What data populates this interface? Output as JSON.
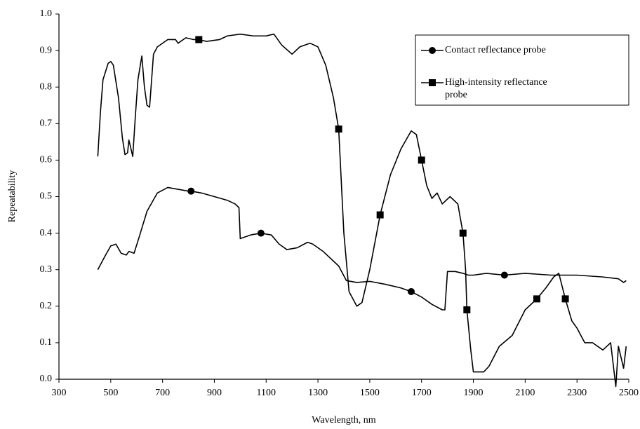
{
  "chart_data": {
    "type": "line",
    "x_label": "Wavelength, nm",
    "y_label": "Repeatability",
    "xlim": [
      300,
      2500
    ],
    "xticks": [
      300,
      500,
      700,
      900,
      1100,
      1300,
      1500,
      1700,
      1900,
      2100,
      2300,
      2500
    ],
    "ylim": [
      0,
      1
    ],
    "yticks": [
      {
        "value": 0,
        "label": "0.0"
      },
      0.1,
      0.2,
      0.3,
      0.4,
      0.5,
      0.6,
      0.7,
      0.8,
      0.9,
      {
        "value": 1,
        "label": "1.0"
      }
    ],
    "grid": false,
    "legend": "upper right",
    "series": [
      {
        "name": "Contact reflectance probe",
        "color": "#000000",
        "marker": "circle",
        "markevery": [
          14,
          22,
          36,
          47
        ],
        "x": [
          450,
          480,
          500,
          520,
          540,
          560,
          570,
          590,
          610,
          640,
          680,
          720,
          760,
          800,
          810,
          850,
          900,
          950,
          980,
          995,
          1000,
          1040,
          1080,
          1120,
          1150,
          1180,
          1220,
          1260,
          1280,
          1320,
          1380,
          1410,
          1450,
          1500,
          1560,
          1620,
          1660,
          1700,
          1740,
          1780,
          1790,
          1800,
          1830,
          1860,
          1880,
          1900,
          1950,
          2020,
          2100,
          2200,
          2300,
          2400,
          2460,
          2480,
          2490
        ],
        "values": [
          0.3,
          0.34,
          0.365,
          0.37,
          0.345,
          0.34,
          0.35,
          0.345,
          0.39,
          0.46,
          0.51,
          0.525,
          0.52,
          0.515,
          0.515,
          0.51,
          0.5,
          0.49,
          0.48,
          0.47,
          0.385,
          0.395,
          0.4,
          0.395,
          0.37,
          0.355,
          0.36,
          0.375,
          0.37,
          0.35,
          0.31,
          0.27,
          0.265,
          0.268,
          0.26,
          0.25,
          0.24,
          0.225,
          0.205,
          0.19,
          0.19,
          0.295,
          0.295,
          0.29,
          0.285,
          0.285,
          0.29,
          0.285,
          0.29,
          0.285,
          0.285,
          0.28,
          0.275,
          0.265,
          0.27
        ]
      },
      {
        "name": "High-intensity reflectance probe",
        "color": "#000000",
        "marker": "square",
        "markevery": [
          25,
          40,
          46,
          51,
          58,
          60,
          68,
          72
        ],
        "x": [
          450,
          460,
          470,
          490,
          500,
          510,
          530,
          545,
          555,
          565,
          570,
          585,
          595,
          605,
          620,
          630,
          640,
          650,
          665,
          680,
          720,
          750,
          760,
          790,
          820,
          840,
          870,
          920,
          950,
          1000,
          1050,
          1100,
          1130,
          1160,
          1200,
          1230,
          1270,
          1300,
          1330,
          1360,
          1380,
          1400,
          1420,
          1450,
          1470,
          1500,
          1540,
          1580,
          1620,
          1660,
          1680,
          1700,
          1720,
          1740,
          1760,
          1780,
          1810,
          1840,
          1860,
          1870,
          1875,
          1890,
          1900,
          1940,
          1960,
          2000,
          2050,
          2100,
          2145,
          2180,
          2210,
          2230,
          2255,
          2280,
          2300,
          2330,
          2360,
          2400,
          2430,
          2450,
          2460,
          2480,
          2490
        ],
        "values": [
          0.61,
          0.73,
          0.82,
          0.865,
          0.87,
          0.86,
          0.77,
          0.66,
          0.615,
          0.62,
          0.655,
          0.61,
          0.72,
          0.82,
          0.885,
          0.8,
          0.75,
          0.745,
          0.89,
          0.91,
          0.93,
          0.93,
          0.92,
          0.935,
          0.93,
          0.93,
          0.925,
          0.93,
          0.94,
          0.945,
          0.94,
          0.94,
          0.945,
          0.915,
          0.89,
          0.91,
          0.92,
          0.91,
          0.86,
          0.77,
          0.685,
          0.4,
          0.24,
          0.2,
          0.21,
          0.3,
          0.45,
          0.56,
          0.63,
          0.68,
          0.67,
          0.6,
          0.53,
          0.495,
          0.51,
          0.48,
          0.5,
          0.48,
          0.4,
          0.3,
          0.19,
          0.08,
          0.02,
          0.02,
          0.035,
          0.09,
          0.12,
          0.19,
          0.22,
          0.25,
          0.28,
          0.29,
          0.22,
          0.16,
          0.14,
          0.1,
          0.1,
          0.08,
          0.1,
          -0.02,
          0.09,
          0.03,
          0.09
        ]
      }
    ]
  }
}
